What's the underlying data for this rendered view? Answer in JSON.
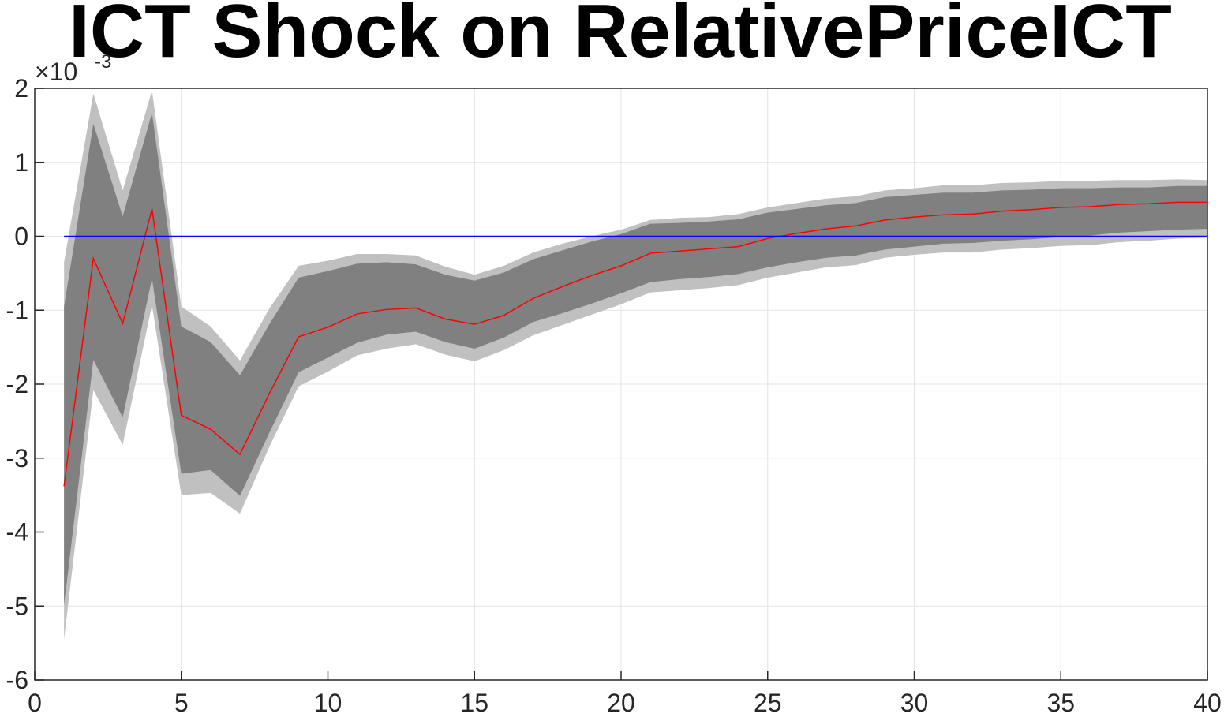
{
  "chart_data": {
    "type": "area",
    "title": "ICT Shock on RelativePriceICT",
    "xlabel": "",
    "ylabel": "",
    "xlim": [
      0,
      40
    ],
    "ylim": [
      -6,
      2
    ],
    "y_scale_factor_label": {
      "base": "×10",
      "exponent": "-3"
    },
    "x_ticks": [
      0,
      5,
      10,
      15,
      20,
      25,
      30,
      35,
      40
    ],
    "y_ticks": [
      -6,
      -5,
      -4,
      -3,
      -2,
      -1,
      0,
      1,
      2
    ],
    "grid": true,
    "x": [
      1,
      2,
      3,
      4,
      5,
      6,
      7,
      8,
      9,
      10,
      11,
      12,
      13,
      14,
      15,
      16,
      17,
      18,
      19,
      20,
      21,
      22,
      23,
      24,
      25,
      26,
      27,
      28,
      29,
      30,
      31,
      32,
      33,
      34,
      35,
      36,
      37,
      38,
      39,
      40
    ],
    "bands": [
      {
        "role": "outer",
        "color": "#c0c0c0",
        "upper": [
          -0.35,
          1.93,
          0.62,
          1.97,
          -0.95,
          -1.22,
          -1.68,
          -0.98,
          -0.4,
          -0.33,
          -0.24,
          -0.24,
          -0.26,
          -0.41,
          -0.52,
          -0.4,
          -0.22,
          -0.1,
          0.0,
          0.09,
          0.22,
          0.25,
          0.26,
          0.3,
          0.39,
          0.45,
          0.51,
          0.54,
          0.62,
          0.65,
          0.69,
          0.69,
          0.72,
          0.73,
          0.75,
          0.75,
          0.76,
          0.76,
          0.77,
          0.76
        ],
        "lower": [
          -5.45,
          -2.08,
          -2.82,
          -0.93,
          -3.5,
          -3.47,
          -3.75,
          -2.85,
          -2.03,
          -1.83,
          -1.61,
          -1.52,
          -1.46,
          -1.6,
          -1.69,
          -1.54,
          -1.34,
          -1.2,
          -1.06,
          -0.92,
          -0.76,
          -0.73,
          -0.7,
          -0.66,
          -0.56,
          -0.49,
          -0.42,
          -0.39,
          -0.29,
          -0.25,
          -0.22,
          -0.22,
          -0.18,
          -0.16,
          -0.13,
          -0.12,
          -0.08,
          -0.06,
          -0.03,
          -0.02
        ]
      },
      {
        "role": "inner",
        "color": "#808080",
        "upper": [
          -0.95,
          1.52,
          0.27,
          1.67,
          -1.22,
          -1.43,
          -1.88,
          -1.19,
          -0.56,
          -0.47,
          -0.37,
          -0.35,
          -0.38,
          -0.52,
          -0.6,
          -0.49,
          -0.31,
          -0.19,
          -0.07,
          0.03,
          0.17,
          0.18,
          0.2,
          0.23,
          0.32,
          0.37,
          0.42,
          0.45,
          0.53,
          0.56,
          0.59,
          0.59,
          0.62,
          0.63,
          0.65,
          0.65,
          0.66,
          0.66,
          0.68,
          0.68
        ],
        "lower": [
          -4.99,
          -1.67,
          -2.45,
          -0.57,
          -3.21,
          -3.16,
          -3.51,
          -2.66,
          -1.84,
          -1.64,
          -1.44,
          -1.33,
          -1.29,
          -1.43,
          -1.52,
          -1.37,
          -1.16,
          -1.04,
          -0.91,
          -0.77,
          -0.62,
          -0.58,
          -0.55,
          -0.51,
          -0.42,
          -0.35,
          -0.29,
          -0.26,
          -0.18,
          -0.14,
          -0.1,
          -0.09,
          -0.06,
          -0.04,
          -0.01,
          0.01,
          0.05,
          0.07,
          0.09,
          0.1
        ]
      }
    ],
    "series": [
      {
        "role": "median",
        "color": "#ff0000",
        "values": [
          -3.38,
          -0.3,
          -1.18,
          0.37,
          -2.42,
          -2.61,
          -2.95,
          -2.13,
          -1.36,
          -1.23,
          -1.05,
          -0.99,
          -0.97,
          -1.12,
          -1.19,
          -1.07,
          -0.84,
          -0.68,
          -0.53,
          -0.4,
          -0.23,
          -0.2,
          -0.17,
          -0.14,
          -0.03,
          0.04,
          0.1,
          0.14,
          0.22,
          0.26,
          0.29,
          0.3,
          0.34,
          0.36,
          0.39,
          0.4,
          0.43,
          0.44,
          0.46,
          0.46
        ]
      },
      {
        "role": "zero-line",
        "color": "#0000ff",
        "values": [
          0,
          0,
          0,
          0,
          0,
          0,
          0,
          0,
          0,
          0,
          0,
          0,
          0,
          0,
          0,
          0,
          0,
          0,
          0,
          0,
          0,
          0,
          0,
          0,
          0,
          0,
          0,
          0,
          0,
          0,
          0,
          0,
          0,
          0,
          0,
          0,
          0,
          0,
          0,
          0
        ]
      }
    ]
  }
}
